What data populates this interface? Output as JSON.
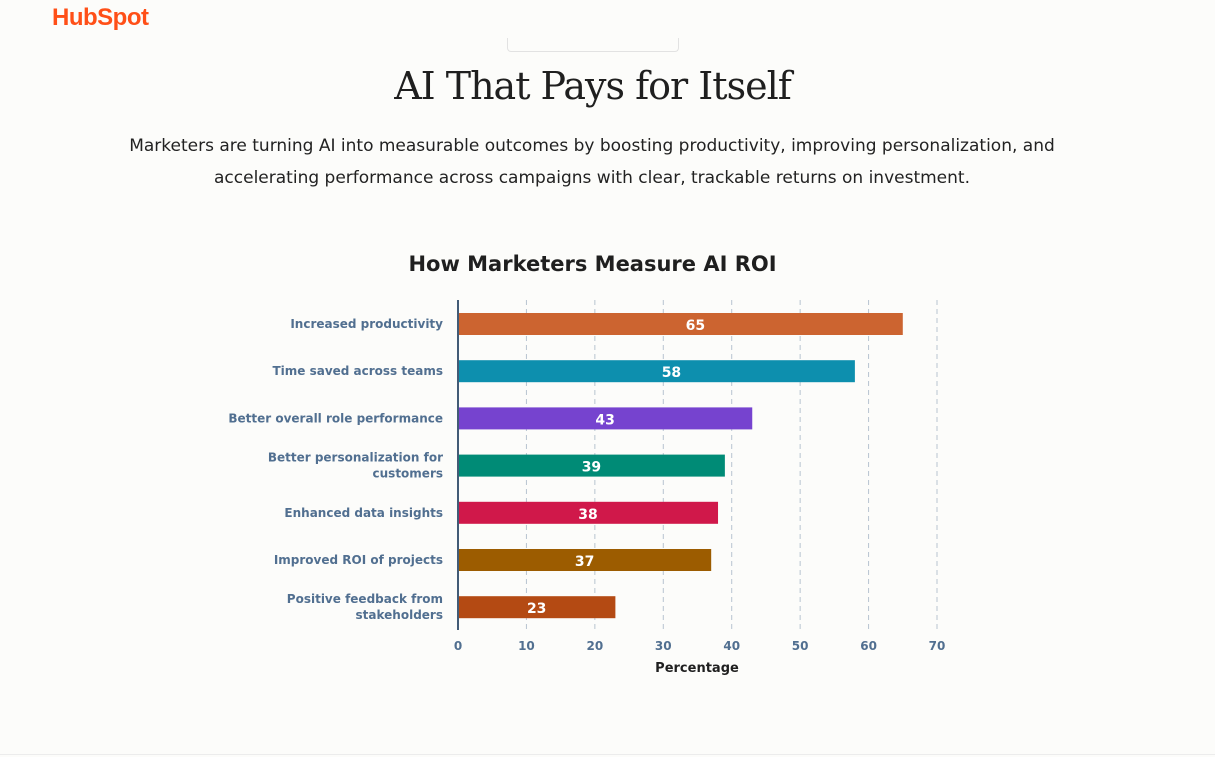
{
  "brand": {
    "logo": "HubSpot",
    "color": "#ff4f17"
  },
  "header": {
    "title": "AI That Pays for Itself",
    "subtitle": "Marketers are turning AI into measurable outcomes by boosting productivity, improving personalization, and accelerating performance across campaigns with clear, trackable returns on investment."
  },
  "chart_data": {
    "type": "bar",
    "orientation": "horizontal",
    "title": "How Marketers Measure AI ROI",
    "xlabel": "Percentage",
    "ylabel": "",
    "xlim": [
      0,
      70
    ],
    "xticks": [
      0,
      10,
      20,
      30,
      40,
      50,
      60,
      70
    ],
    "grid": "vertical dashed",
    "categories": [
      [
        "Increased productivity"
      ],
      [
        "Time saved across teams"
      ],
      [
        "Better overall role performance"
      ],
      [
        "Better personalization for",
        "customers"
      ],
      [
        "Enhanced data insights"
      ],
      [
        "Improved ROI of projects"
      ],
      [
        "Positive feedback from",
        "stakeholders"
      ]
    ],
    "values": [
      65,
      58,
      43,
      39,
      38,
      37,
      23
    ],
    "colors": [
      "#cc6430",
      "#0d8fae",
      "#7643cf",
      "#008b76",
      "#d0184a",
      "#9c5c00",
      "#b44a13"
    ]
  }
}
